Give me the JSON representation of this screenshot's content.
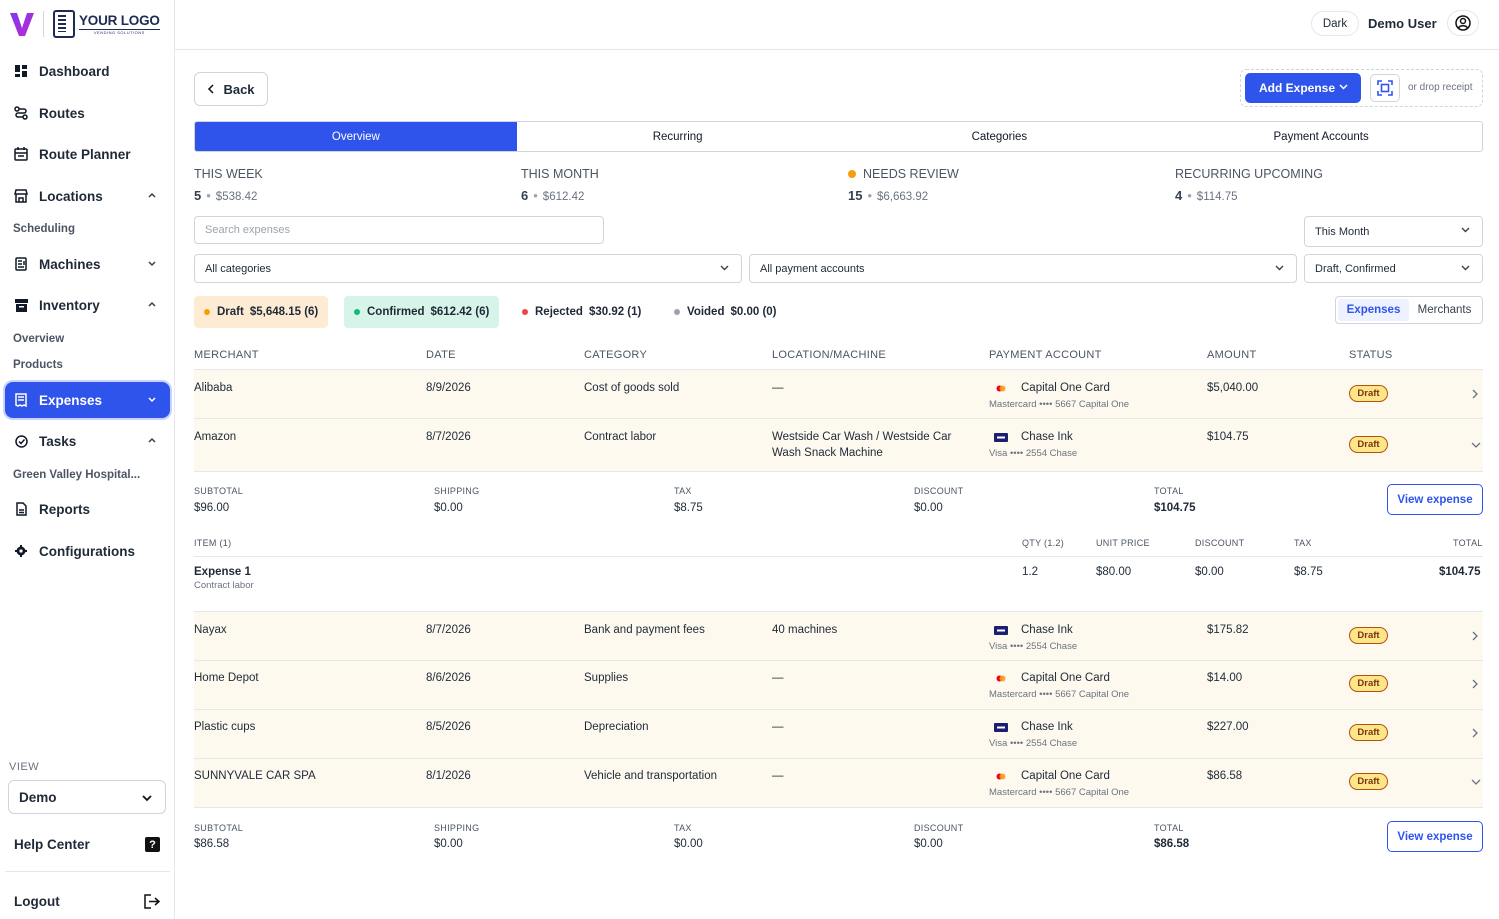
{
  "brand": {
    "logo_big": "YOUR LOGO",
    "logo_small": "VENDING SOLUTIONS"
  },
  "sidebar": {
    "items": [
      {
        "label": "Dashboard"
      },
      {
        "label": "Routes"
      },
      {
        "label": "Route Planner"
      },
      {
        "label": "Locations"
      },
      {
        "label": "Machines"
      },
      {
        "label": "Inventory"
      },
      {
        "label": "Expenses"
      },
      {
        "label": "Tasks"
      },
      {
        "label": "Reports"
      },
      {
        "label": "Configurations"
      }
    ],
    "sub": {
      "scheduling": "Scheduling",
      "overview": "Overview",
      "products": "Products",
      "green_valley": "Green Valley Hospital..."
    },
    "view_label": "VIEW",
    "view_value": "Demo",
    "help": "Help Center",
    "help_icon": "?",
    "logout": "Logout"
  },
  "topbar": {
    "theme": "Dark",
    "user": "Demo User"
  },
  "toolbar": {
    "back": "Back",
    "add_expense": "Add Expense",
    "drop_hint": "or drop receipt"
  },
  "tabs": [
    "Overview",
    "Recurring",
    "Categories",
    "Payment Accounts"
  ],
  "stats": [
    {
      "label": "THIS WEEK",
      "count": "5",
      "amount": "$538.42"
    },
    {
      "label": "THIS MONTH",
      "count": "6",
      "amount": "$612.42"
    },
    {
      "label": "NEEDS REVIEW",
      "count": "15",
      "amount": "$6,663.92"
    },
    {
      "label": "RECURRING UPCOMING",
      "count": "4",
      "amount": "$114.75"
    }
  ],
  "stat_sep": "•",
  "filters": {
    "search_placeholder": "Search expenses",
    "period": "This Month",
    "categories": "All categories",
    "accounts": "All payment accounts",
    "statuses": "Draft, Confirmed"
  },
  "summary": [
    {
      "label": "Draft",
      "value": "$5,648.15 (6)",
      "color": "#f59e0b"
    },
    {
      "label": "Confirmed",
      "value": "$612.42 (6)",
      "color": "#10b981"
    },
    {
      "label": "Rejected",
      "value": "$30.92 (1)",
      "color": "#ef4444"
    },
    {
      "label": "Voided",
      "value": "$0.00 (0)",
      "color": "#9ca3af"
    }
  ],
  "view_toggle": [
    "Expenses",
    "Merchants"
  ],
  "columns": [
    "MERCHANT",
    "DATE",
    "CATEGORY",
    "LOCATION/MACHINE",
    "PAYMENT ACCOUNT",
    "AMOUNT",
    "STATUS"
  ],
  "rows": [
    {
      "merchant": "Alibaba",
      "date": "8/9/2026",
      "category": "Cost of goods sold",
      "location": "—",
      "account": "Capital One Card",
      "account_sub": "Mastercard •••• 5667   Capital One",
      "card": "mastercard",
      "amount": "$5,040.00",
      "status": "Draft"
    },
    {
      "merchant": "Amazon",
      "date": "8/7/2026",
      "category": "Contract labor",
      "location": "Westside Car Wash / Westside Car Wash Snack Machine",
      "account": "Chase Ink",
      "account_sub": "Visa •••• 2554   Chase",
      "card": "visa",
      "amount": "$104.75",
      "status": "Draft"
    },
    {
      "merchant": "Nayax",
      "date": "8/7/2026",
      "category": "Bank and payment fees",
      "location": "40 machines",
      "account": "Chase Ink",
      "account_sub": "Visa •••• 2554   Chase",
      "card": "visa",
      "amount": "$175.82",
      "status": "Draft"
    },
    {
      "merchant": "Home Depot",
      "date": "8/6/2026",
      "category": "Supplies",
      "location": "—",
      "account": "Capital One Card",
      "account_sub": "Mastercard •••• 5667   Capital One",
      "card": "mastercard",
      "amount": "$14.00",
      "status": "Draft"
    },
    {
      "merchant": "Plastic cups",
      "date": "8/5/2026",
      "category": "Depreciation",
      "location": "—",
      "account": "Chase Ink",
      "account_sub": "Visa •••• 2554   Chase",
      "card": "visa",
      "amount": "$227.00",
      "status": "Draft"
    },
    {
      "merchant": "SUNNYVALE CAR SPA",
      "date": "8/1/2026",
      "category": "Vehicle and transportation",
      "location": "—",
      "account": "Capital One Card",
      "account_sub": "Mastercard •••• 5667   Capital One",
      "card": "mastercard",
      "amount": "$86.58",
      "status": "Draft"
    }
  ],
  "detail_labels": [
    "SUBTOTAL",
    "SHIPPING",
    "TAX",
    "DISCOUNT",
    "TOTAL"
  ],
  "details": [
    {
      "subtotal": "$96.00",
      "shipping": "$0.00",
      "tax": "$8.75",
      "discount": "$0.00",
      "total": "$104.75",
      "button": "View expense"
    },
    {
      "subtotal": "$86.58",
      "shipping": "$0.00",
      "tax": "$0.00",
      "discount": "$0.00",
      "total": "$86.58",
      "button": "View expense"
    }
  ],
  "items_header": {
    "item": "ITEM (1)",
    "qty": "QTY (1.2)",
    "unit_price": "UNIT PRICE",
    "discount": "DISCOUNT",
    "tax": "TAX",
    "total": "TOTAL"
  },
  "items": [
    {
      "name": "Expense 1",
      "category": "Contract labor",
      "qty": "1.2",
      "unit_price": "$80.00",
      "discount": "$0.00",
      "tax": "$8.75",
      "total": "$104.75"
    }
  ],
  "colors": {
    "accent": "#2f54eb",
    "draft_badge": "#fde68a",
    "row_highlight": "#fdf9ef"
  }
}
